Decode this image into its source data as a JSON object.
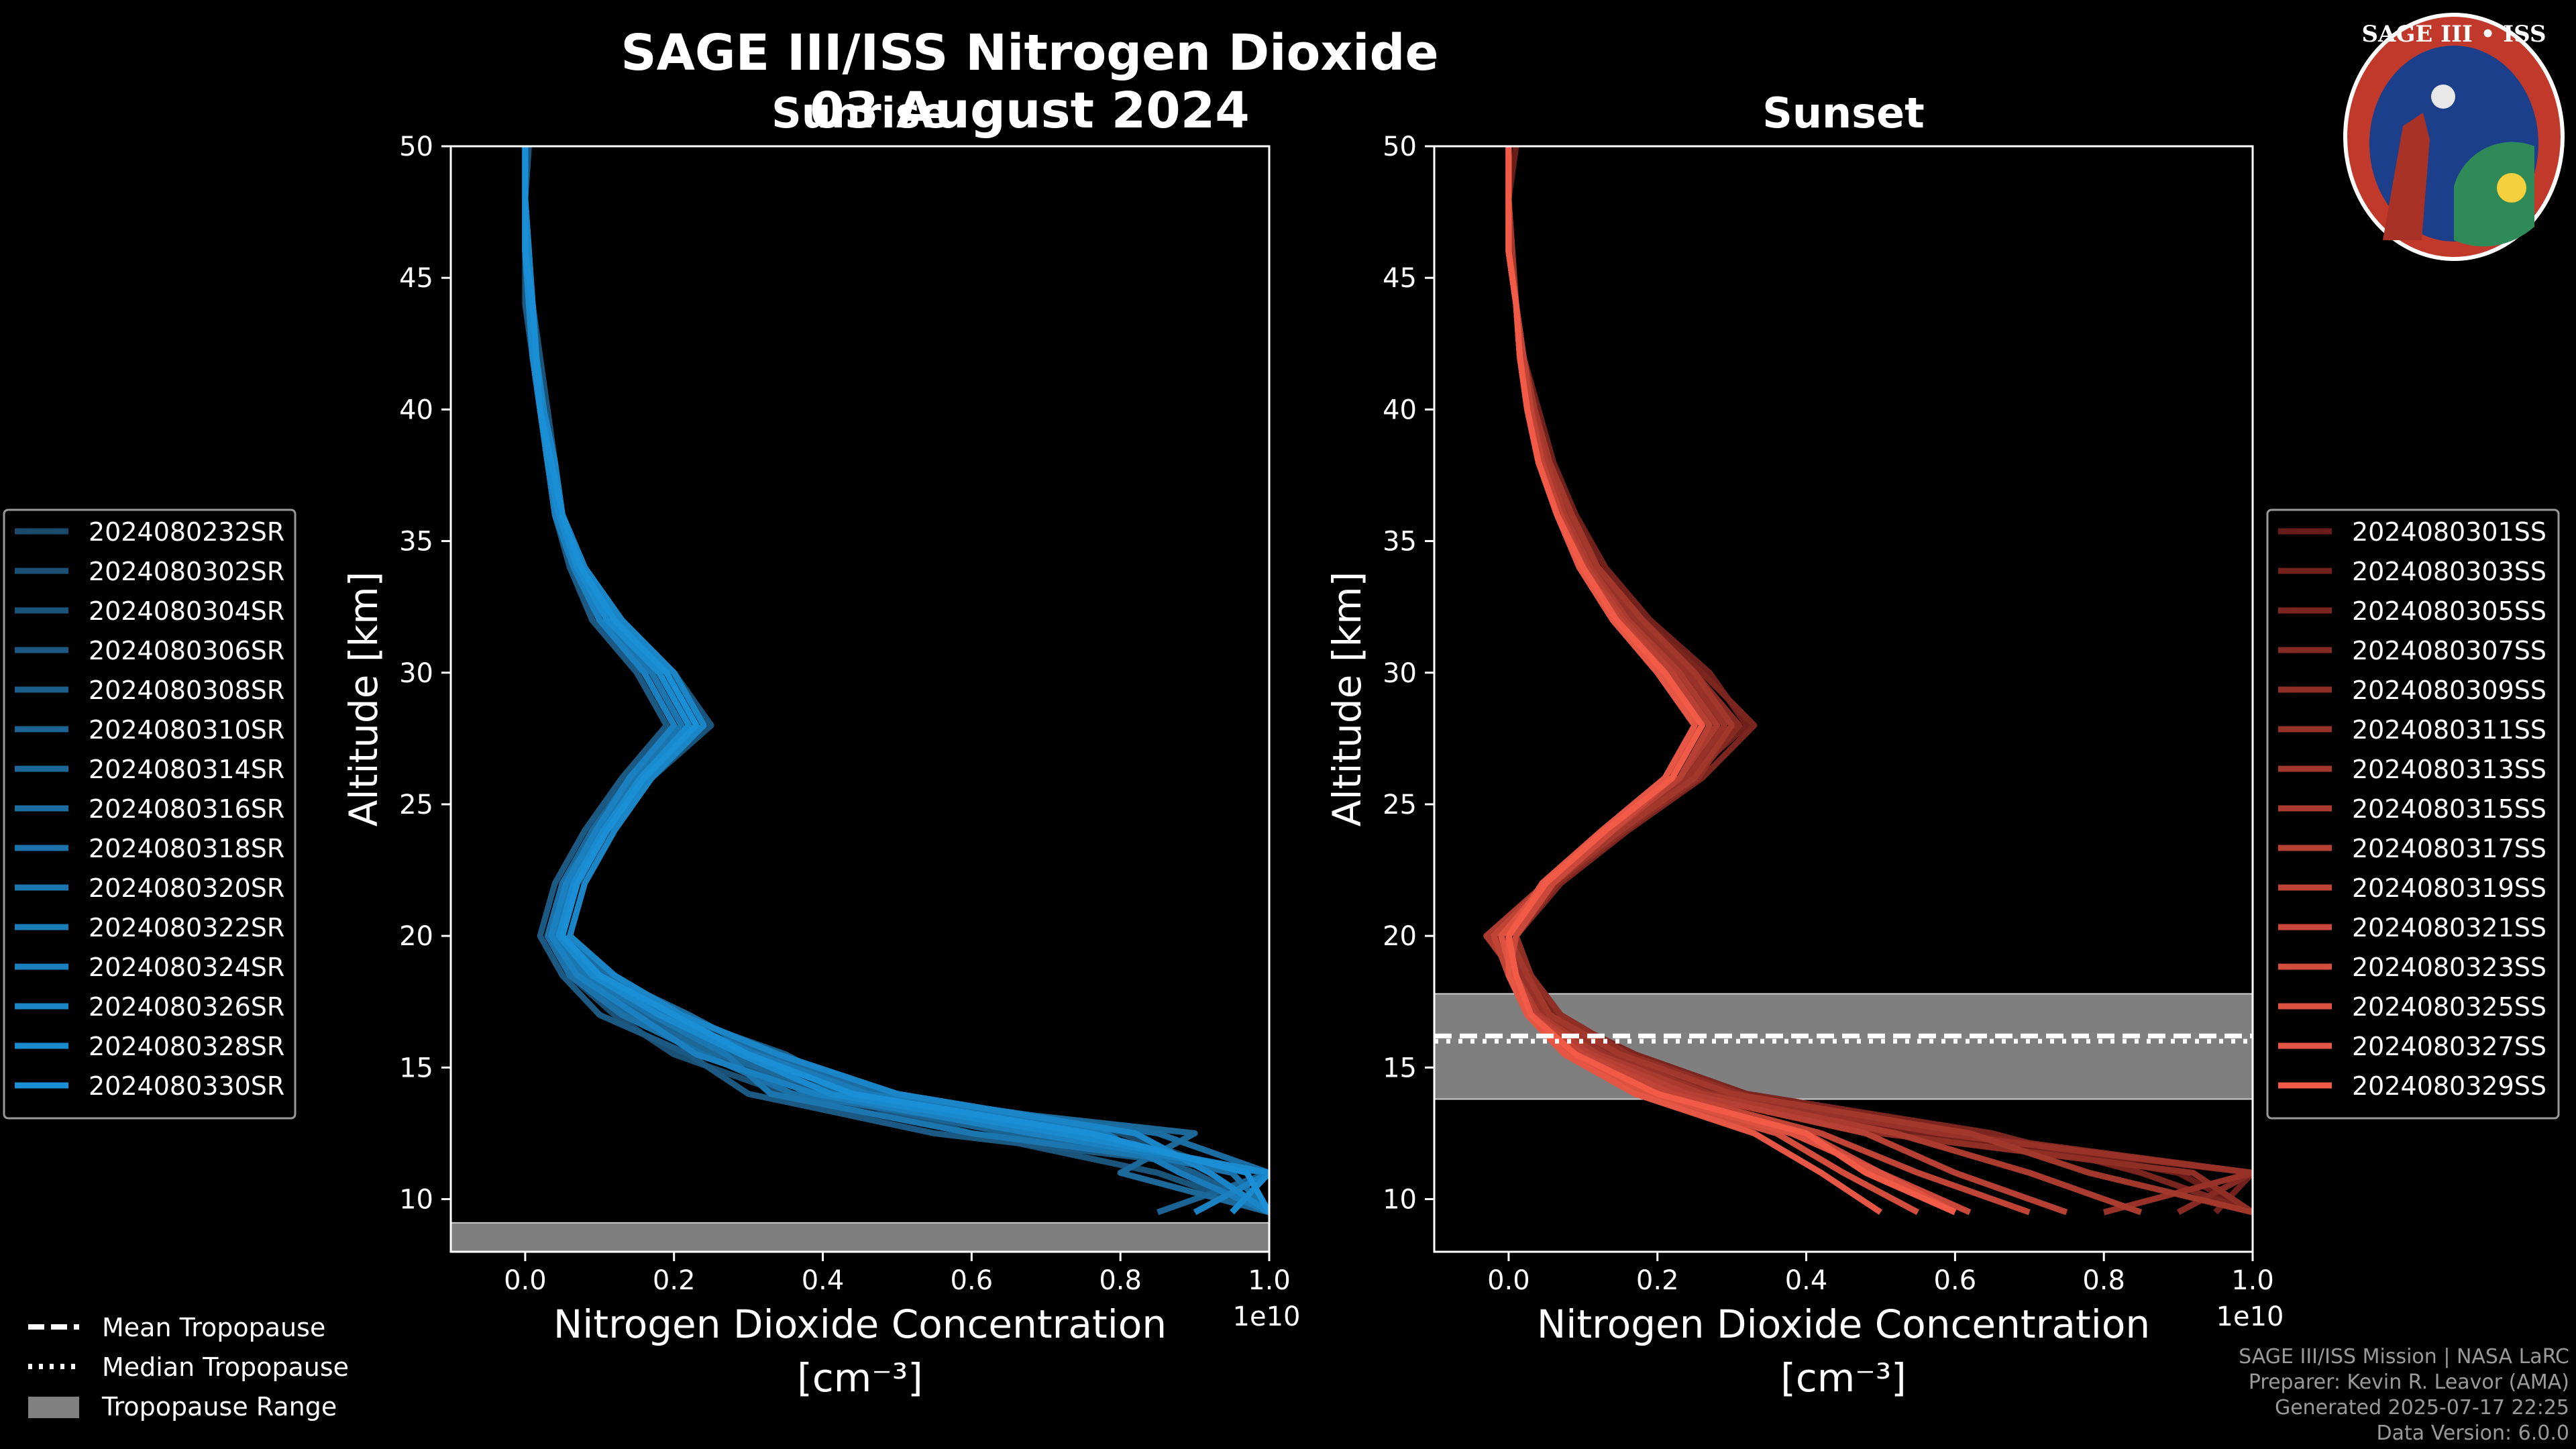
{
  "header": {
    "title": "SAGE III/ISS Nitrogen Dioxide",
    "date": "03 August 2024"
  },
  "logo": {
    "text": "SAGE III • ISS",
    "colors": {
      "ring": "#c0392b",
      "inner": "#1b3f8b",
      "gold": "#d4a017"
    }
  },
  "legend_common": {
    "items": [
      {
        "label": "Mean Tropopause",
        "style": "dashed"
      },
      {
        "label": "Median Tropopause",
        "style": "dotted"
      },
      {
        "label": "Tropopause Range",
        "style": "patch"
      }
    ]
  },
  "footer": {
    "line1": "SAGE III/ISS Mission | NASA LaRC",
    "line2": "Preparer: Kevin R. Leavor (AMA)",
    "line3": "Generated 2025-07-17 22:25",
    "line4": "Data Version: 6.0.0"
  },
  "chart_data": [
    {
      "type": "line",
      "panel": "sunrise",
      "title": "Sunrise",
      "xlabel": "Nitrogen Dioxide Concentration",
      "xunits": "[cm⁻³]",
      "x_scale_label": "1e10",
      "ylabel": "Altitude [km]",
      "xlim": [
        -0.1,
        1.0
      ],
      "ylim": [
        8,
        50
      ],
      "xticks": [
        0.0,
        0.2,
        0.4,
        0.6,
        0.8,
        1.0
      ],
      "xtick_labels": [
        "0.0",
        "0.2",
        "0.4",
        "0.6",
        "0.8",
        "1.0"
      ],
      "yticks": [
        10,
        15,
        20,
        25,
        30,
        35,
        40,
        45,
        50
      ],
      "base_color": "#1a8fd6",
      "legend_location": "left",
      "tropopause_range": [
        8.0,
        9.1
      ],
      "altitudes": [
        9.5,
        11,
        12.5,
        14,
        15.5,
        17,
        18.5,
        20,
        22,
        24,
        26,
        28,
        30,
        32,
        34,
        36,
        38,
        40,
        42,
        44,
        46,
        48,
        50
      ],
      "series": [
        {
          "name": "2024080232SR",
          "values": [
            1.0,
            0.95,
            0.8,
            0.5,
            0.3,
            0.15,
            0.08,
            0.04,
            0.06,
            0.1,
            0.15,
            0.2,
            0.16,
            0.1,
            0.06,
            0.04,
            0.03,
            0.02,
            0.01,
            0.005,
            0.0,
            0.0,
            0.0
          ]
        },
        {
          "name": "2024080302SR",
          "values": [
            0.9,
            1.0,
            0.7,
            0.35,
            0.2,
            0.12,
            0.06,
            0.03,
            0.05,
            0.09,
            0.14,
            0.22,
            0.18,
            0.11,
            0.07,
            0.05,
            0.03,
            0.02,
            0.015,
            0.01,
            0.005,
            0.0,
            0.0
          ]
        },
        {
          "name": "2024080304SR",
          "values": [
            1.0,
            0.85,
            0.6,
            0.4,
            0.25,
            0.18,
            0.1,
            0.05,
            0.07,
            0.11,
            0.17,
            0.25,
            0.2,
            0.12,
            0.08,
            0.05,
            0.04,
            0.03,
            0.02,
            0.01,
            0.005,
            0.0,
            0.005
          ]
        },
        {
          "name": "2024080306SR",
          "values": [
            0.95,
            1.0,
            0.55,
            0.3,
            0.22,
            0.1,
            0.05,
            0.02,
            0.04,
            0.08,
            0.13,
            0.19,
            0.15,
            0.09,
            0.06,
            0.04,
            0.03,
            0.02,
            0.01,
            0.0,
            0.0,
            0.0,
            0.0
          ]
        },
        {
          "name": "2024080308SR",
          "values": [
            1.0,
            0.9,
            0.75,
            0.45,
            0.35,
            0.2,
            0.12,
            0.06,
            0.08,
            0.12,
            0.16,
            0.23,
            0.19,
            0.13,
            0.08,
            0.05,
            0.04,
            0.02,
            0.015,
            0.01,
            0.0,
            0.0,
            0.0
          ]
        },
        {
          "name": "2024080310SR",
          "values": [
            0.85,
            1.0,
            0.65,
            0.38,
            0.28,
            0.16,
            0.09,
            0.04,
            0.06,
            0.1,
            0.15,
            0.21,
            0.17,
            0.1,
            0.07,
            0.045,
            0.03,
            0.02,
            0.01,
            0.005,
            0.0,
            0.0,
            0.0
          ]
        },
        {
          "name": "2024080314SR",
          "values": [
            1.0,
            0.8,
            0.9,
            0.42,
            0.26,
            0.14,
            0.07,
            0.03,
            0.05,
            0.09,
            0.14,
            0.2,
            0.16,
            0.1,
            0.065,
            0.04,
            0.03,
            0.02,
            0.01,
            0.005,
            0.0,
            0.0,
            0.0
          ]
        },
        {
          "name": "2024080316SR",
          "values": [
            0.9,
            1.0,
            0.85,
            0.48,
            0.32,
            0.22,
            0.11,
            0.05,
            0.07,
            0.11,
            0.16,
            0.24,
            0.2,
            0.12,
            0.08,
            0.05,
            0.035,
            0.025,
            0.015,
            0.01,
            0.005,
            0.0,
            0.0
          ]
        },
        {
          "name": "2024080318SR",
          "values": [
            1.0,
            0.95,
            0.7,
            0.36,
            0.24,
            0.13,
            0.06,
            0.03,
            0.05,
            0.1,
            0.15,
            0.22,
            0.18,
            0.11,
            0.07,
            0.045,
            0.03,
            0.02,
            0.01,
            0.005,
            0.0,
            0.0,
            0.0
          ]
        },
        {
          "name": "2024080320SR",
          "values": [
            0.95,
            1.0,
            0.6,
            0.33,
            0.27,
            0.17,
            0.08,
            0.04,
            0.06,
            0.1,
            0.15,
            0.21,
            0.17,
            0.1,
            0.065,
            0.04,
            0.03,
            0.02,
            0.01,
            0.005,
            0.0,
            0.0,
            0.0
          ]
        },
        {
          "name": "2024080322SR",
          "values": [
            1.0,
            0.88,
            0.78,
            0.46,
            0.31,
            0.19,
            0.1,
            0.05,
            0.07,
            0.11,
            0.16,
            0.23,
            0.19,
            0.12,
            0.075,
            0.05,
            0.035,
            0.02,
            0.015,
            0.01,
            0.0,
            0.0,
            0.0
          ]
        },
        {
          "name": "2024080324SR",
          "values": [
            0.9,
            1.0,
            0.68,
            0.39,
            0.23,
            0.15,
            0.07,
            0.035,
            0.055,
            0.095,
            0.14,
            0.2,
            0.16,
            0.1,
            0.065,
            0.04,
            0.03,
            0.02,
            0.01,
            0.005,
            0.0,
            0.0,
            0.0
          ]
        },
        {
          "name": "2024080326SR",
          "values": [
            1.0,
            0.92,
            0.82,
            0.5,
            0.34,
            0.21,
            0.12,
            0.06,
            0.08,
            0.12,
            0.17,
            0.24,
            0.2,
            0.13,
            0.08,
            0.05,
            0.04,
            0.025,
            0.015,
            0.01,
            0.005,
            0.0,
            0.0
          ]
        },
        {
          "name": "2024080328SR",
          "values": [
            0.95,
            1.0,
            0.72,
            0.41,
            0.29,
            0.18,
            0.09,
            0.045,
            0.065,
            0.105,
            0.155,
            0.22,
            0.18,
            0.11,
            0.07,
            0.045,
            0.03,
            0.02,
            0.01,
            0.005,
            0.0,
            0.0,
            0.0
          ]
        },
        {
          "name": "2024080330SR",
          "values": [
            1.0,
            0.97,
            0.76,
            0.44,
            0.3,
            0.2,
            0.1,
            0.05,
            0.07,
            0.11,
            0.16,
            0.23,
            0.19,
            0.12,
            0.075,
            0.05,
            0.035,
            0.02,
            0.015,
            0.01,
            0.0,
            0.0,
            0.0
          ]
        }
      ]
    },
    {
      "type": "line",
      "panel": "sunset",
      "title": "Sunset",
      "xlabel": "Nitrogen Dioxide Concentration",
      "xunits": "[cm⁻³]",
      "x_scale_label": "1e10",
      "ylabel": "Altitude [km]",
      "xlim": [
        -0.1,
        1.0
      ],
      "ylim": [
        8,
        50
      ],
      "xticks": [
        0.0,
        0.2,
        0.4,
        0.6,
        0.8,
        1.0
      ],
      "xtick_labels": [
        "0.0",
        "0.2",
        "0.4",
        "0.6",
        "0.8",
        "1.0"
      ],
      "yticks": [
        10,
        15,
        20,
        25,
        30,
        35,
        40,
        45,
        50
      ],
      "base_color": "#f05a47",
      "legend_location": "right",
      "tropopause_range": [
        13.8,
        17.8
      ],
      "tropopause_mean": 16.2,
      "tropopause_median": 16.0,
      "altitudes": [
        9.5,
        11,
        12.5,
        14,
        15.5,
        17,
        18.5,
        20,
        22,
        24,
        26,
        28,
        30,
        32,
        34,
        36,
        38,
        40,
        42,
        44,
        46,
        48,
        50
      ],
      "series": [
        {
          "name": "2024080301SS",
          "values": [
            1.0,
            0.9,
            0.6,
            0.3,
            0.15,
            0.05,
            0.02,
            0.0,
            0.06,
            0.15,
            0.25,
            0.3,
            0.25,
            0.18,
            0.13,
            0.09,
            0.06,
            0.04,
            0.02,
            0.01,
            0.0,
            0.0,
            0.01
          ]
        },
        {
          "name": "2024080303SS",
          "values": [
            0.95,
            1.0,
            0.55,
            0.28,
            0.12,
            0.04,
            0.015,
            -0.01,
            0.05,
            0.14,
            0.24,
            0.32,
            0.27,
            0.19,
            0.13,
            0.09,
            0.06,
            0.04,
            0.02,
            0.01,
            0.0,
            0.0,
            0.0
          ]
        },
        {
          "name": "2024080305SS",
          "values": [
            1.0,
            0.85,
            0.65,
            0.32,
            0.17,
            0.06,
            0.025,
            0.01,
            0.07,
            0.16,
            0.26,
            0.33,
            0.26,
            0.18,
            0.12,
            0.08,
            0.055,
            0.035,
            0.02,
            0.01,
            0.005,
            0.0,
            0.0
          ]
        },
        {
          "name": "2024080307SS",
          "values": [
            0.9,
            1.0,
            0.6,
            0.29,
            0.14,
            0.05,
            0.02,
            0.0,
            0.06,
            0.15,
            0.25,
            0.31,
            0.25,
            0.17,
            0.12,
            0.08,
            0.05,
            0.035,
            0.02,
            0.01,
            0.0,
            0.0,
            0.0
          ]
        },
        {
          "name": "2024080309SS",
          "values": [
            1.0,
            0.92,
            0.5,
            0.31,
            0.16,
            0.07,
            0.03,
            0.01,
            0.065,
            0.155,
            0.255,
            0.3,
            0.24,
            0.17,
            0.12,
            0.08,
            0.05,
            0.03,
            0.02,
            0.01,
            0.0,
            0.0,
            0.0
          ]
        },
        {
          "name": "2024080311SS",
          "values": [
            0.8,
            1.0,
            0.58,
            0.27,
            0.13,
            0.045,
            0.02,
            -0.02,
            0.05,
            0.14,
            0.24,
            0.29,
            0.24,
            0.17,
            0.115,
            0.08,
            0.05,
            0.03,
            0.02,
            0.01,
            0.0,
            0.0,
            0.0
          ]
        },
        {
          "name": "2024080313SS",
          "values": [
            1.0,
            0.78,
            0.62,
            0.3,
            0.15,
            0.055,
            0.025,
            0.0,
            0.06,
            0.15,
            0.25,
            0.3,
            0.25,
            0.18,
            0.12,
            0.085,
            0.055,
            0.035,
            0.02,
            0.01,
            0.005,
            0.0,
            0.0
          ]
        },
        {
          "name": "2024080315SS",
          "values": [
            0.85,
            0.7,
            0.52,
            0.26,
            0.12,
            0.04,
            0.01,
            -0.03,
            0.05,
            0.13,
            0.23,
            0.28,
            0.23,
            0.16,
            0.11,
            0.075,
            0.05,
            0.03,
            0.02,
            0.01,
            0.0,
            0.0,
            0.0
          ]
        },
        {
          "name": "2024080317SS",
          "values": [
            0.75,
            0.6,
            0.48,
            0.24,
            0.11,
            0.035,
            0.01,
            0.0,
            0.055,
            0.14,
            0.23,
            0.27,
            0.22,
            0.155,
            0.105,
            0.07,
            0.045,
            0.03,
            0.02,
            0.01,
            0.0,
            0.0,
            0.0
          ]
        },
        {
          "name": "2024080319SS",
          "values": [
            0.7,
            0.55,
            0.42,
            0.22,
            0.1,
            0.03,
            0.0,
            -0.02,
            0.05,
            0.13,
            0.22,
            0.26,
            0.21,
            0.15,
            0.1,
            0.07,
            0.045,
            0.03,
            0.02,
            0.01,
            0.0,
            0.0,
            0.0
          ]
        },
        {
          "name": "2024080321SS",
          "values": [
            0.62,
            0.5,
            0.4,
            0.2,
            0.09,
            0.03,
            0.0,
            0.01,
            0.06,
            0.14,
            0.22,
            0.25,
            0.2,
            0.14,
            0.095,
            0.065,
            0.04,
            0.025,
            0.015,
            0.01,
            0.0,
            0.0,
            0.0
          ]
        },
        {
          "name": "2024080323SS",
          "values": [
            0.55,
            0.45,
            0.36,
            0.18,
            0.08,
            0.025,
            0.0,
            0.0,
            0.05,
            0.13,
            0.21,
            0.25,
            0.2,
            0.14,
            0.095,
            0.065,
            0.04,
            0.025,
            0.015,
            0.01,
            0.0,
            0.0,
            0.0
          ]
        },
        {
          "name": "2024080325SS",
          "values": [
            0.6,
            0.5,
            0.38,
            0.19,
            0.085,
            0.03,
            0.005,
            -0.01,
            0.05,
            0.13,
            0.22,
            0.26,
            0.21,
            0.145,
            0.1,
            0.065,
            0.04,
            0.025,
            0.015,
            0.01,
            0.0,
            0.0,
            0.0
          ]
        },
        {
          "name": "2024080327SS",
          "values": [
            0.5,
            0.42,
            0.33,
            0.17,
            0.075,
            0.025,
            0.0,
            0.0,
            0.045,
            0.125,
            0.21,
            0.25,
            0.2,
            0.14,
            0.095,
            0.065,
            0.04,
            0.025,
            0.015,
            0.01,
            0.0,
            0.0,
            0.0
          ]
        },
        {
          "name": "2024080329SS",
          "values": [
            0.6,
            0.48,
            0.4,
            0.2,
            0.09,
            0.03,
            0.01,
            0.0,
            0.05,
            0.13,
            0.22,
            0.26,
            0.21,
            0.145,
            0.1,
            0.065,
            0.04,
            0.025,
            0.015,
            0.01,
            0.0,
            0.0,
            0.0
          ]
        }
      ]
    }
  ]
}
